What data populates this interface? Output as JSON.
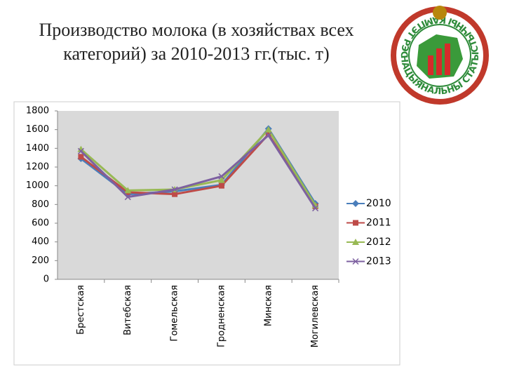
{
  "chart_data": {
    "type": "line",
    "title": "Производство молока (в хозяйствах всех категорий) за 2010-2013 гг.(тыс. т)",
    "categories": [
      "Брестская",
      "Витебская",
      "Гомельская",
      "Гродненская",
      "Минская",
      "Могилевская"
    ],
    "series": [
      {
        "name": "2010",
        "color": "#4a7ebb",
        "marker": "diamond",
        "values": [
          1290,
          910,
          940,
          1010,
          1610,
          810
        ]
      },
      {
        "name": "2011",
        "color": "#be4b48",
        "marker": "square",
        "values": [
          1310,
          930,
          910,
          1000,
          1550,
          780
        ]
      },
      {
        "name": "2012",
        "color": "#98b954",
        "marker": "triangle",
        "values": [
          1390,
          950,
          960,
          1060,
          1600,
          790
        ]
      },
      {
        "name": "2013",
        "color": "#7d60a0",
        "marker": "x",
        "values": [
          1370,
          880,
          960,
          1100,
          1540,
          760
        ]
      }
    ],
    "ylim": [
      0,
      1800
    ],
    "yticks": [
      0,
      200,
      400,
      600,
      800,
      1000,
      1200,
      1400,
      1600,
      1800
    ],
    "grid": false,
    "legend": "right"
  },
  "logo": {
    "text": "НАЦЫЯНАЛЬНЫ СТАТЫСТЫЧНЫ КАМІТЭТ РЭСПУБЛІКІ БЕЛАРУСЬ"
  }
}
